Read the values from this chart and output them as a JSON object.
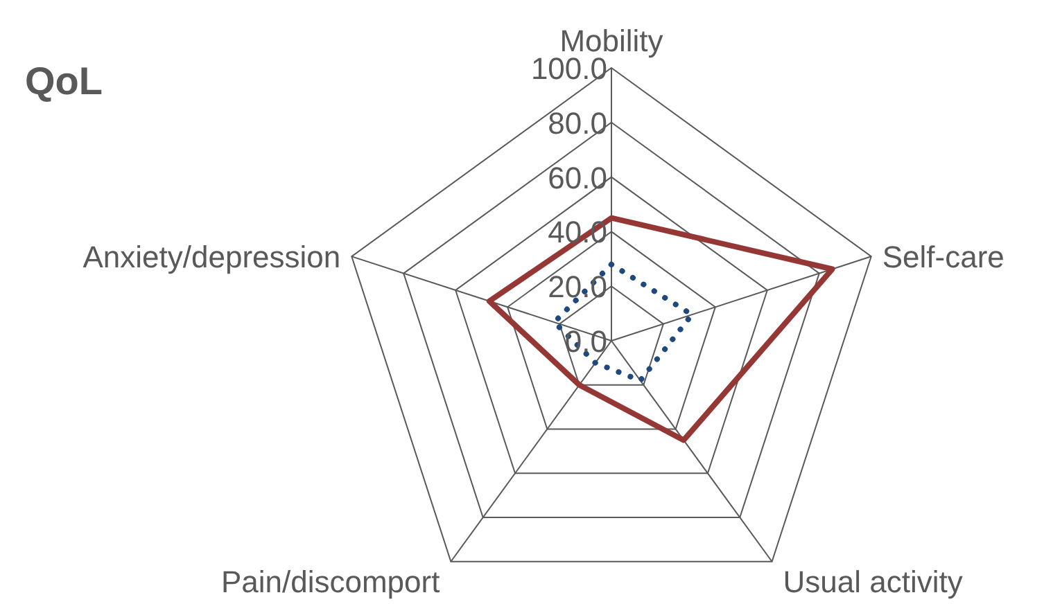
{
  "chart_data": {
    "type": "radar",
    "title": "QoL",
    "categories": [
      "Mobility",
      "Self-care",
      "Usual activity",
      "Pain/discomport",
      "Anxiety/depression"
    ],
    "ylim": [
      0,
      100
    ],
    "yticks": [
      {
        "value": 0,
        "label": "0.0"
      },
      {
        "value": 20,
        "label": "20.0"
      },
      {
        "value": 40,
        "label": "40.0"
      },
      {
        "value": 60,
        "label": "60.0"
      },
      {
        "value": 80,
        "label": "80.0"
      },
      {
        "value": 100,
        "label": "100.0"
      }
    ],
    "grid": true,
    "marker": "none",
    "series": [
      {
        "color": "#953735",
        "line_style": "solid",
        "values": [
          45,
          85,
          45,
          20,
          47
        ]
      },
      {
        "color": "#1f497d",
        "line_style": "dotted",
        "values": [
          28,
          31,
          18,
          10,
          22
        ]
      }
    ]
  }
}
